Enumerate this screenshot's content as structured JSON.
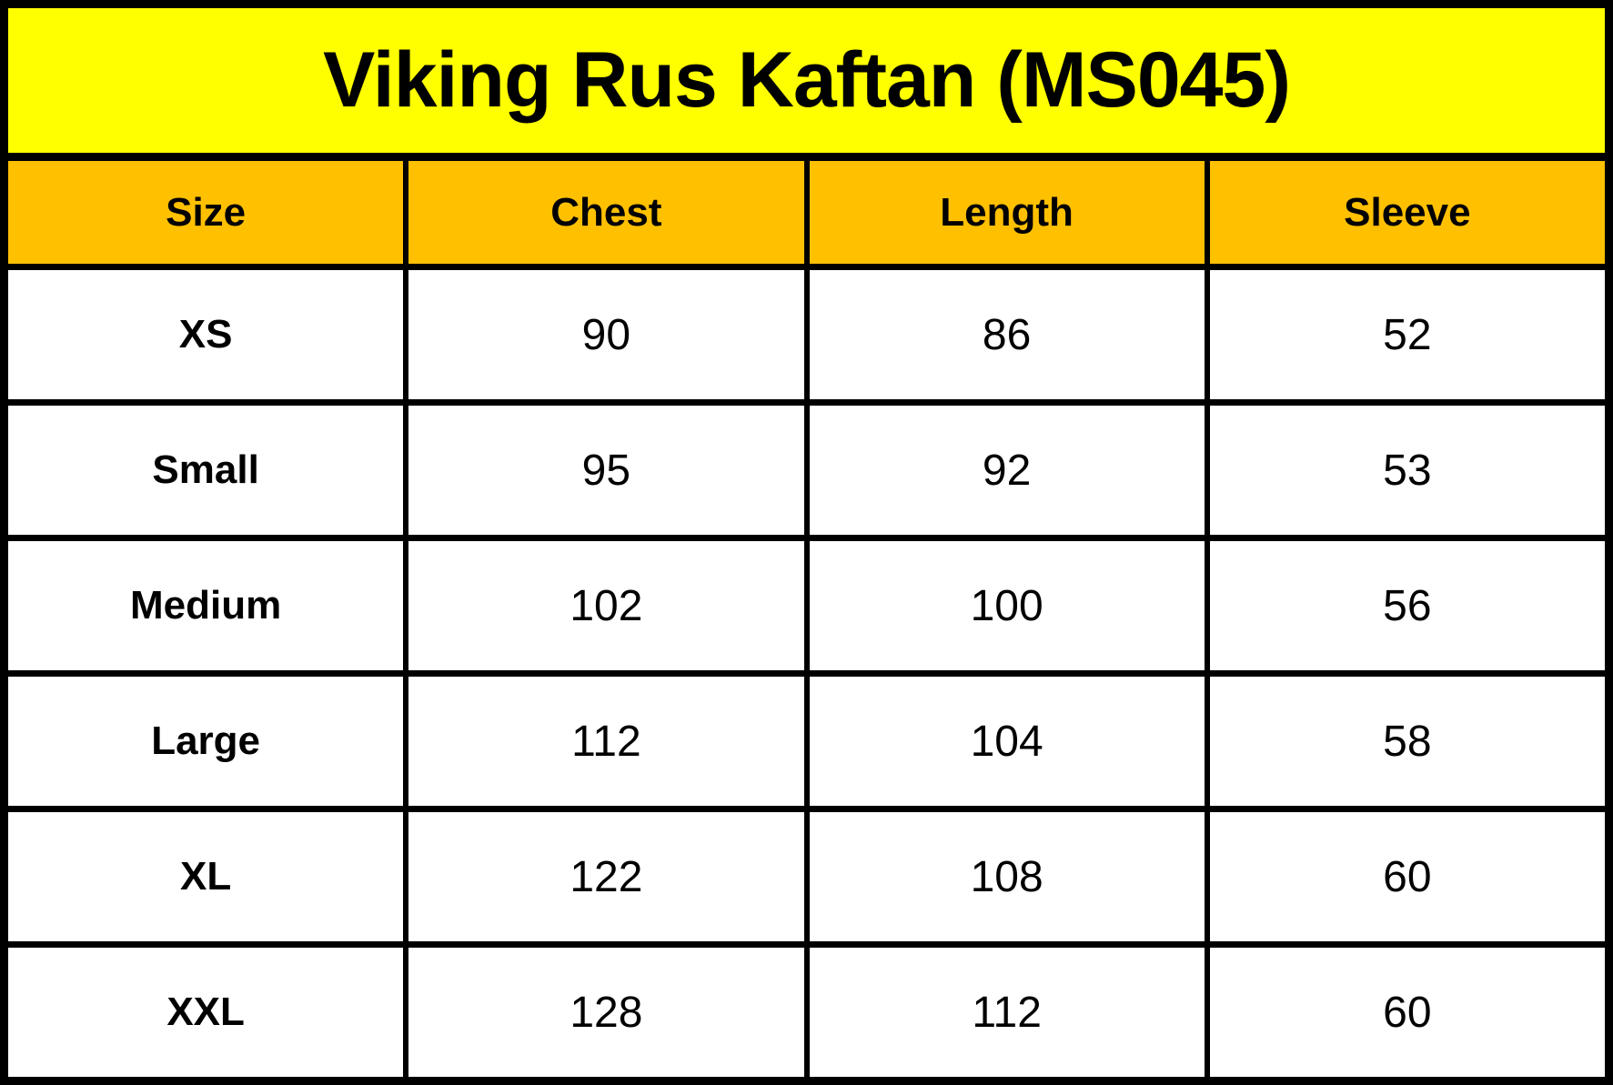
{
  "title": "Viking Rus Kaftan (MS045)",
  "colors": {
    "title_bg": "#FFFF00",
    "header_bg": "#FFC000",
    "border": "#000000",
    "row_bg": "#FFFFFF",
    "text": "#000000"
  },
  "chart_data": {
    "type": "table",
    "title": "Viking Rus Kaftan (MS045)",
    "columns": [
      "Size",
      "Chest",
      "Length",
      "Sleeve"
    ],
    "rows": [
      [
        "XS",
        "90",
        "86",
        "52"
      ],
      [
        "Small",
        "95",
        "92",
        "53"
      ],
      [
        "Medium",
        "102",
        "100",
        "56"
      ],
      [
        "Large",
        "112",
        "104",
        "58"
      ],
      [
        "XL",
        "122",
        "108",
        "60"
      ],
      [
        "XXL",
        "128",
        "112",
        "60"
      ]
    ]
  }
}
